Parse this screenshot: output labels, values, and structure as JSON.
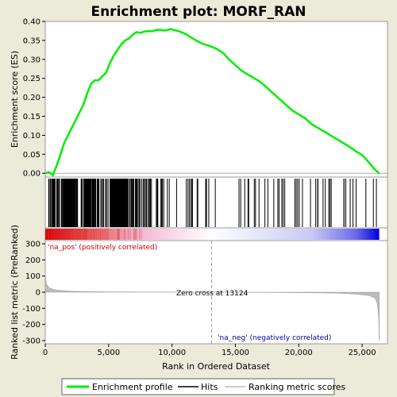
{
  "chart_data": {
    "type": "line",
    "title": "Enrichment plot: MORF_RAN",
    "es_panel": {
      "ylabel": "Enrichment score (ES)",
      "ylim": [
        -0.01,
        0.4
      ],
      "yticks": [
        0.0,
        0.05,
        0.1,
        0.15,
        0.2,
        0.25,
        0.3,
        0.35,
        0.4
      ],
      "ytick_labels": [
        "0.00",
        "0.05",
        "0.10",
        "0.15",
        "0.20",
        "0.25",
        "0.30",
        "0.35",
        "0.40"
      ],
      "series": [
        {
          "name": "Enrichment profile",
          "color": "#00ee00",
          "x": [
            0,
            300,
            600,
            900,
            1200,
            1500,
            1800,
            2100,
            2400,
            2700,
            3000,
            3300,
            3600,
            3900,
            4200,
            4500,
            4800,
            5100,
            5400,
            5700,
            6000,
            6300,
            6600,
            6900,
            7200,
            7500,
            7800,
            8100,
            8400,
            8700,
            9000,
            9300,
            9600,
            9900,
            10200,
            10500,
            11000,
            11500,
            12000,
            12500,
            13000,
            13500,
            14000,
            14500,
            15000,
            15500,
            16000,
            16500,
            17000,
            17500,
            18000,
            18500,
            19000,
            19500,
            20000,
            20500,
            21000,
            21500,
            22000,
            22500,
            23000,
            23500,
            24000,
            24500,
            25000,
            25500,
            26000,
            26350
          ],
          "y": [
            0.0,
            0.003,
            -0.005,
            0.02,
            0.05,
            0.08,
            0.1,
            0.12,
            0.14,
            0.16,
            0.18,
            0.21,
            0.235,
            0.245,
            0.245,
            0.255,
            0.265,
            0.29,
            0.31,
            0.325,
            0.34,
            0.35,
            0.355,
            0.365,
            0.372,
            0.37,
            0.373,
            0.375,
            0.374,
            0.377,
            0.378,
            0.376,
            0.377,
            0.38,
            0.377,
            0.375,
            0.368,
            0.358,
            0.348,
            0.34,
            0.335,
            0.328,
            0.318,
            0.3,
            0.285,
            0.27,
            0.26,
            0.25,
            0.24,
            0.225,
            0.21,
            0.195,
            0.18,
            0.165,
            0.155,
            0.145,
            0.13,
            0.12,
            0.11,
            0.1,
            0.09,
            0.08,
            0.07,
            0.058,
            0.048,
            0.03,
            0.01,
            0.0
          ]
        }
      ]
    },
    "hits_panel": {
      "color": "#000000",
      "bands": [
        {
          "from": 100,
          "to": 3700,
          "count": 70
        },
        {
          "from": 3700,
          "to": 6900,
          "count": 55
        },
        {
          "from": 6900,
          "to": 10000,
          "count": 32
        },
        {
          "from": 10000,
          "to": 13000,
          "count": 14
        },
        {
          "from": 13000,
          "to": 18500,
          "count": 14
        },
        {
          "from": 18500,
          "to": 26200,
          "count": 26
        }
      ],
      "dense_ranges": [
        [
          1400,
          2400
        ],
        [
          3000,
          3600
        ],
        [
          5200,
          6400
        ]
      ]
    },
    "gradient": {
      "pos_color": "#dd0000",
      "mid_color": "#ffffff",
      "neg_color": "#0000dd",
      "zero_at": 13124
    },
    "metric_panel": {
      "ylabel": "Ranked list metric (PreRanked)",
      "ylim": [
        -320,
        320
      ],
      "yticks": [
        -300,
        -200,
        -100,
        0,
        100,
        200,
        300
      ],
      "ytick_labels": [
        "-300",
        "-200",
        "-100",
        "0",
        "100",
        "200",
        "300"
      ],
      "fill_color": "#bbbbbb",
      "x": [
        0,
        100,
        300,
        600,
        1000,
        2000,
        4000,
        7000,
        10000,
        13124,
        16000,
        20000,
        23000,
        24500,
        25500,
        26000,
        26200,
        26300,
        26350
      ],
      "y": [
        100,
        50,
        28,
        18,
        12,
        6,
        3,
        1.5,
        0.5,
        0,
        -1,
        -3,
        -6,
        -12,
        -20,
        -35,
        -70,
        -150,
        -300
      ],
      "annotations": {
        "zero_cross": "Zero cross at 13124",
        "pos_label": "'na_pos' (positively correlated)",
        "neg_label": "'na_neg' (negatively correlated)",
        "pos_color": "#cc0000",
        "neg_color": "#0000aa"
      }
    },
    "x_axis": {
      "label": "Rank in Ordered Dataset",
      "xlim": [
        0,
        27000
      ],
      "ticks": [
        0,
        5000,
        10000,
        15000,
        20000,
        25000
      ],
      "tick_labels": [
        "0",
        "5,000",
        "10,000",
        "15,000",
        "20,000",
        "25,000"
      ]
    },
    "legend": {
      "placement": "bottom",
      "entries": [
        {
          "label": "Enrichment profile",
          "color": "#00ee00"
        },
        {
          "label": "Hits",
          "color": "#000000"
        },
        {
          "label": "Ranking metric scores",
          "color": "#bbbbbb"
        }
      ]
    }
  }
}
